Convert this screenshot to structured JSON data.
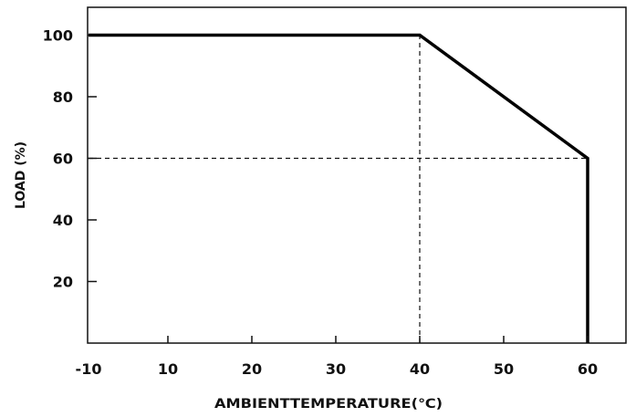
{
  "chart_data": {
    "type": "line",
    "title": "",
    "xlabel": "AMBIENTTEMPERATURE(℃)",
    "ylabel": "LOAD (%)",
    "xlim": [
      -10,
      60
    ],
    "ylim": [
      0,
      110
    ],
    "x_ticks": [
      -10,
      10,
      20,
      30,
      40,
      50,
      60
    ],
    "y_ticks": [
      20,
      40,
      60,
      80,
      100
    ],
    "grid": false,
    "series": [
      {
        "x": [
          -10,
          40,
          60,
          60
        ],
        "y": [
          100,
          100,
          60,
          0
        ]
      }
    ],
    "reference_lines": [
      {
        "x": [
          40,
          40
        ],
        "y": [
          0,
          100
        ],
        "style": "dashed"
      },
      {
        "x": [
          -10,
          60
        ],
        "y": [
          60,
          60
        ],
        "style": "dashed"
      }
    ]
  }
}
